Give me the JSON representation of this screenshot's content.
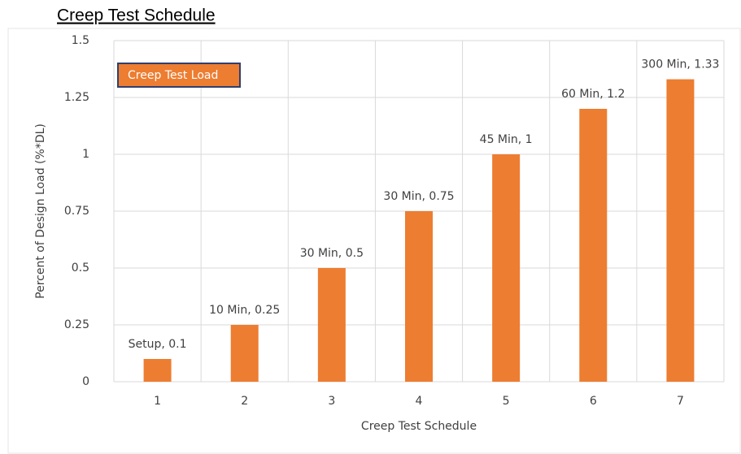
{
  "chart_data": {
    "type": "bar",
    "title": "Creep Test Schedule",
    "x_label": "Creep Test Schedule",
    "y_label": "Percent of Design Load (%*DL)",
    "categories": [
      "1",
      "2",
      "3",
      "4",
      "5",
      "6",
      "7"
    ],
    "series": [
      {
        "name": "Creep Test Load",
        "color": "#ed7d31",
        "values": [
          0.1,
          0.25,
          0.5,
          0.75,
          1,
          1.2,
          1.33
        ],
        "value_labels": [
          "Setup, 0.1",
          "10 Min, 0.25",
          "30 Min, 0.5",
          "30 Min, 0.75",
          "45 Min, 1",
          "60 Min, 1.2",
          "300 Min, 1.33"
        ]
      }
    ],
    "ylim": [
      0,
      1.5
    ],
    "yticks": [
      0,
      0.25,
      0.5,
      0.75,
      1,
      1.25,
      1.5
    ],
    "grid": true,
    "legend": "top-left"
  }
}
